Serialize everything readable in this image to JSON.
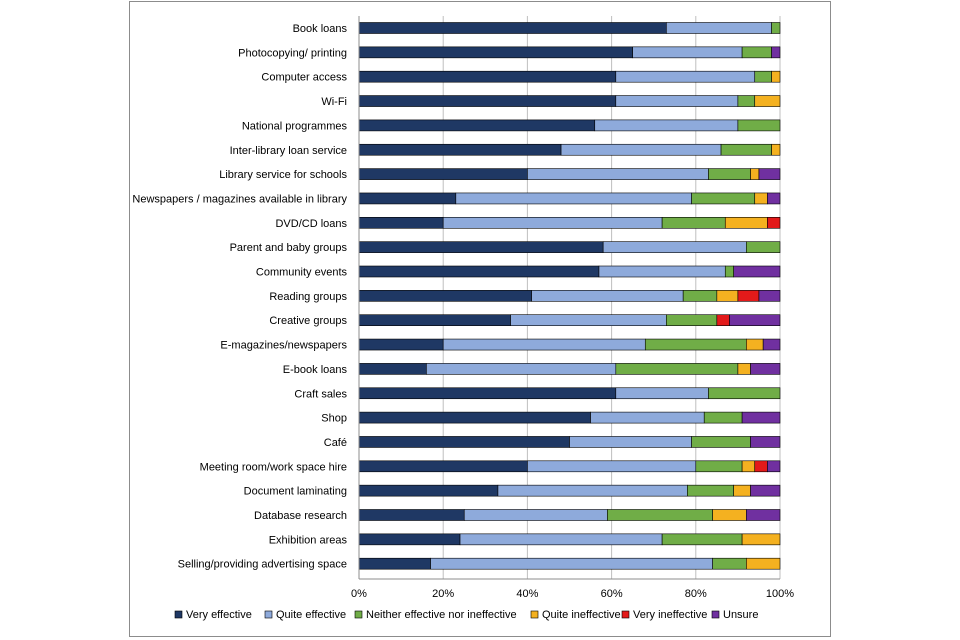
{
  "chart_data": {
    "type": "bar",
    "orientation": "horizontal",
    "stacked": "percent",
    "categories": [
      "Book loans",
      "Photocopying/ printing",
      "Computer access",
      "Wi-Fi",
      "National programmes",
      "Inter-library loan service",
      "Library service for schools",
      "Newspapers / magazines  available in library",
      "DVD/CD loans",
      "Parent and baby groups",
      "Community events",
      "Reading groups",
      "Creative groups",
      "E-magazines/newspapers",
      "E-book loans",
      "Craft sales",
      "Shop",
      "Café",
      "Meeting room/work space hire",
      "Document laminating",
      "Database research",
      "Exhibition areas",
      "Selling/providing advertising space"
    ],
    "series": [
      {
        "name": "Very effective",
        "color": "#1f3864",
        "values": [
          73,
          65,
          61,
          61,
          56,
          48,
          40,
          23,
          20,
          58,
          57,
          41,
          36,
          20,
          16,
          61,
          55,
          50,
          40,
          33,
          25,
          24,
          17
        ]
      },
      {
        "name": "Quite effective",
        "color": "#8eaadb",
        "values": [
          25,
          26,
          33,
          29,
          34,
          38,
          43,
          56,
          52,
          34,
          30,
          36,
          37,
          48,
          45,
          22,
          27,
          29,
          40,
          45,
          34,
          48,
          67
        ]
      },
      {
        "name": "Neither effective nor ineffective",
        "color": "#70ad47",
        "values": [
          2,
          7,
          4,
          4,
          10,
          12,
          10,
          15,
          15,
          8,
          2,
          8,
          12,
          24,
          29,
          17,
          9,
          14,
          11,
          11,
          25,
          19,
          8
        ]
      },
      {
        "name": "Quite ineffective",
        "color": "#f4b120",
        "values": [
          0,
          0,
          2,
          6,
          0,
          2,
          2,
          3,
          10,
          0,
          0,
          5,
          0,
          4,
          3,
          0,
          0,
          0,
          3,
          4,
          8,
          9,
          8
        ]
      },
      {
        "name": "Very ineffective",
        "color": "#e31a1a",
        "values": [
          0,
          0,
          0,
          0,
          0,
          0,
          0,
          0,
          3,
          0,
          0,
          5,
          3,
          0,
          0,
          0,
          0,
          0,
          3,
          0,
          0,
          0,
          0
        ]
      },
      {
        "name": "Unsure",
        "color": "#7030a0",
        "values": [
          0,
          2,
          0,
          0,
          0,
          0,
          5,
          3,
          0,
          0,
          11,
          5,
          12,
          4,
          7,
          0,
          9,
          7,
          3,
          7,
          8,
          0,
          0
        ]
      }
    ],
    "xlim": [
      0,
      100
    ],
    "xticks": [
      "0%",
      "20%",
      "40%",
      "60%",
      "80%",
      "100%"
    ],
    "grid": true,
    "legend_position": "bottom"
  }
}
